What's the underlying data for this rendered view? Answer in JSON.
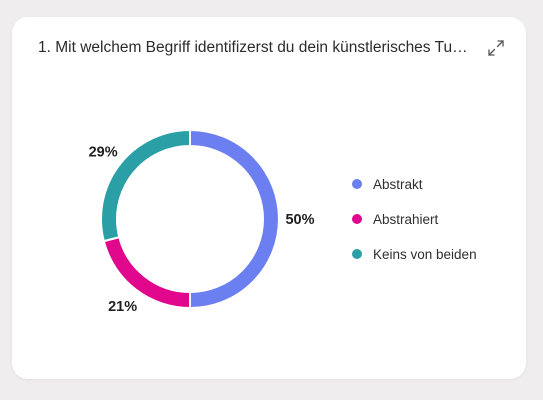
{
  "card": {
    "title": "1. Mit welchem Begriff identifizerst du dein künstlerisches Tun..."
  },
  "icons": {
    "expand": "expand-arrows-icon"
  },
  "chart_data": {
    "type": "pie",
    "donut": true,
    "categories": [
      "Abstrakt",
      "Abstrahiert",
      "Keins von beiden"
    ],
    "values": [
      50,
      21,
      29
    ],
    "value_labels": [
      "50%",
      "21%",
      "29%"
    ],
    "colors": [
      "#6b7ff0",
      "#e0078c",
      "#2a9fa6"
    ],
    "legend_position": "right"
  }
}
